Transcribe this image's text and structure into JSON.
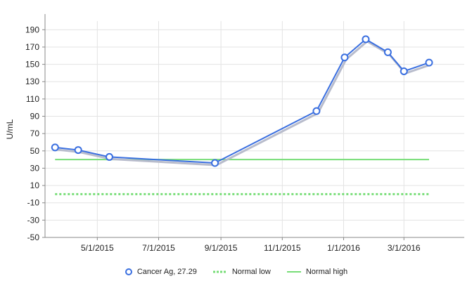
{
  "chart_data": {
    "type": "line",
    "ylabel": "U/mL",
    "ylim": [
      -50,
      200
    ],
    "yticks": [
      190,
      170,
      150,
      130,
      110,
      90,
      70,
      50,
      30,
      10,
      -10,
      -30,
      -50
    ],
    "xticks": [
      "5/1/2015",
      "7/1/2015",
      "9/1/2015",
      "11/1/2015",
      "1/1/2016",
      "3/1/2016"
    ],
    "xlim": [
      "2015-03-10",
      "2016-04-30"
    ],
    "grid": true,
    "legend_placement": "bottom",
    "series": [
      {
        "name": "Cancer Ag, 27.29",
        "color": "#3a6fe0",
        "points": [
          {
            "x": "2015-03-20",
            "y": 54
          },
          {
            "x": "2015-04-12",
            "y": 51
          },
          {
            "x": "2015-05-13",
            "y": 43
          },
          {
            "x": "2015-08-26",
            "y": 36
          },
          {
            "x": "2015-12-05",
            "y": 96
          },
          {
            "x": "2016-01-02",
            "y": 158
          },
          {
            "x": "2016-01-23",
            "y": 179
          },
          {
            "x": "2016-02-14",
            "y": 164
          },
          {
            "x": "2016-03-01",
            "y": 142
          },
          {
            "x": "2016-03-26",
            "y": 152
          }
        ]
      },
      {
        "name": "Normal low",
        "color": "#77dd77",
        "style": "dotted",
        "y": 0
      },
      {
        "name": "Normal high",
        "color": "#77dd77",
        "style": "solid",
        "y": 40
      }
    ]
  }
}
